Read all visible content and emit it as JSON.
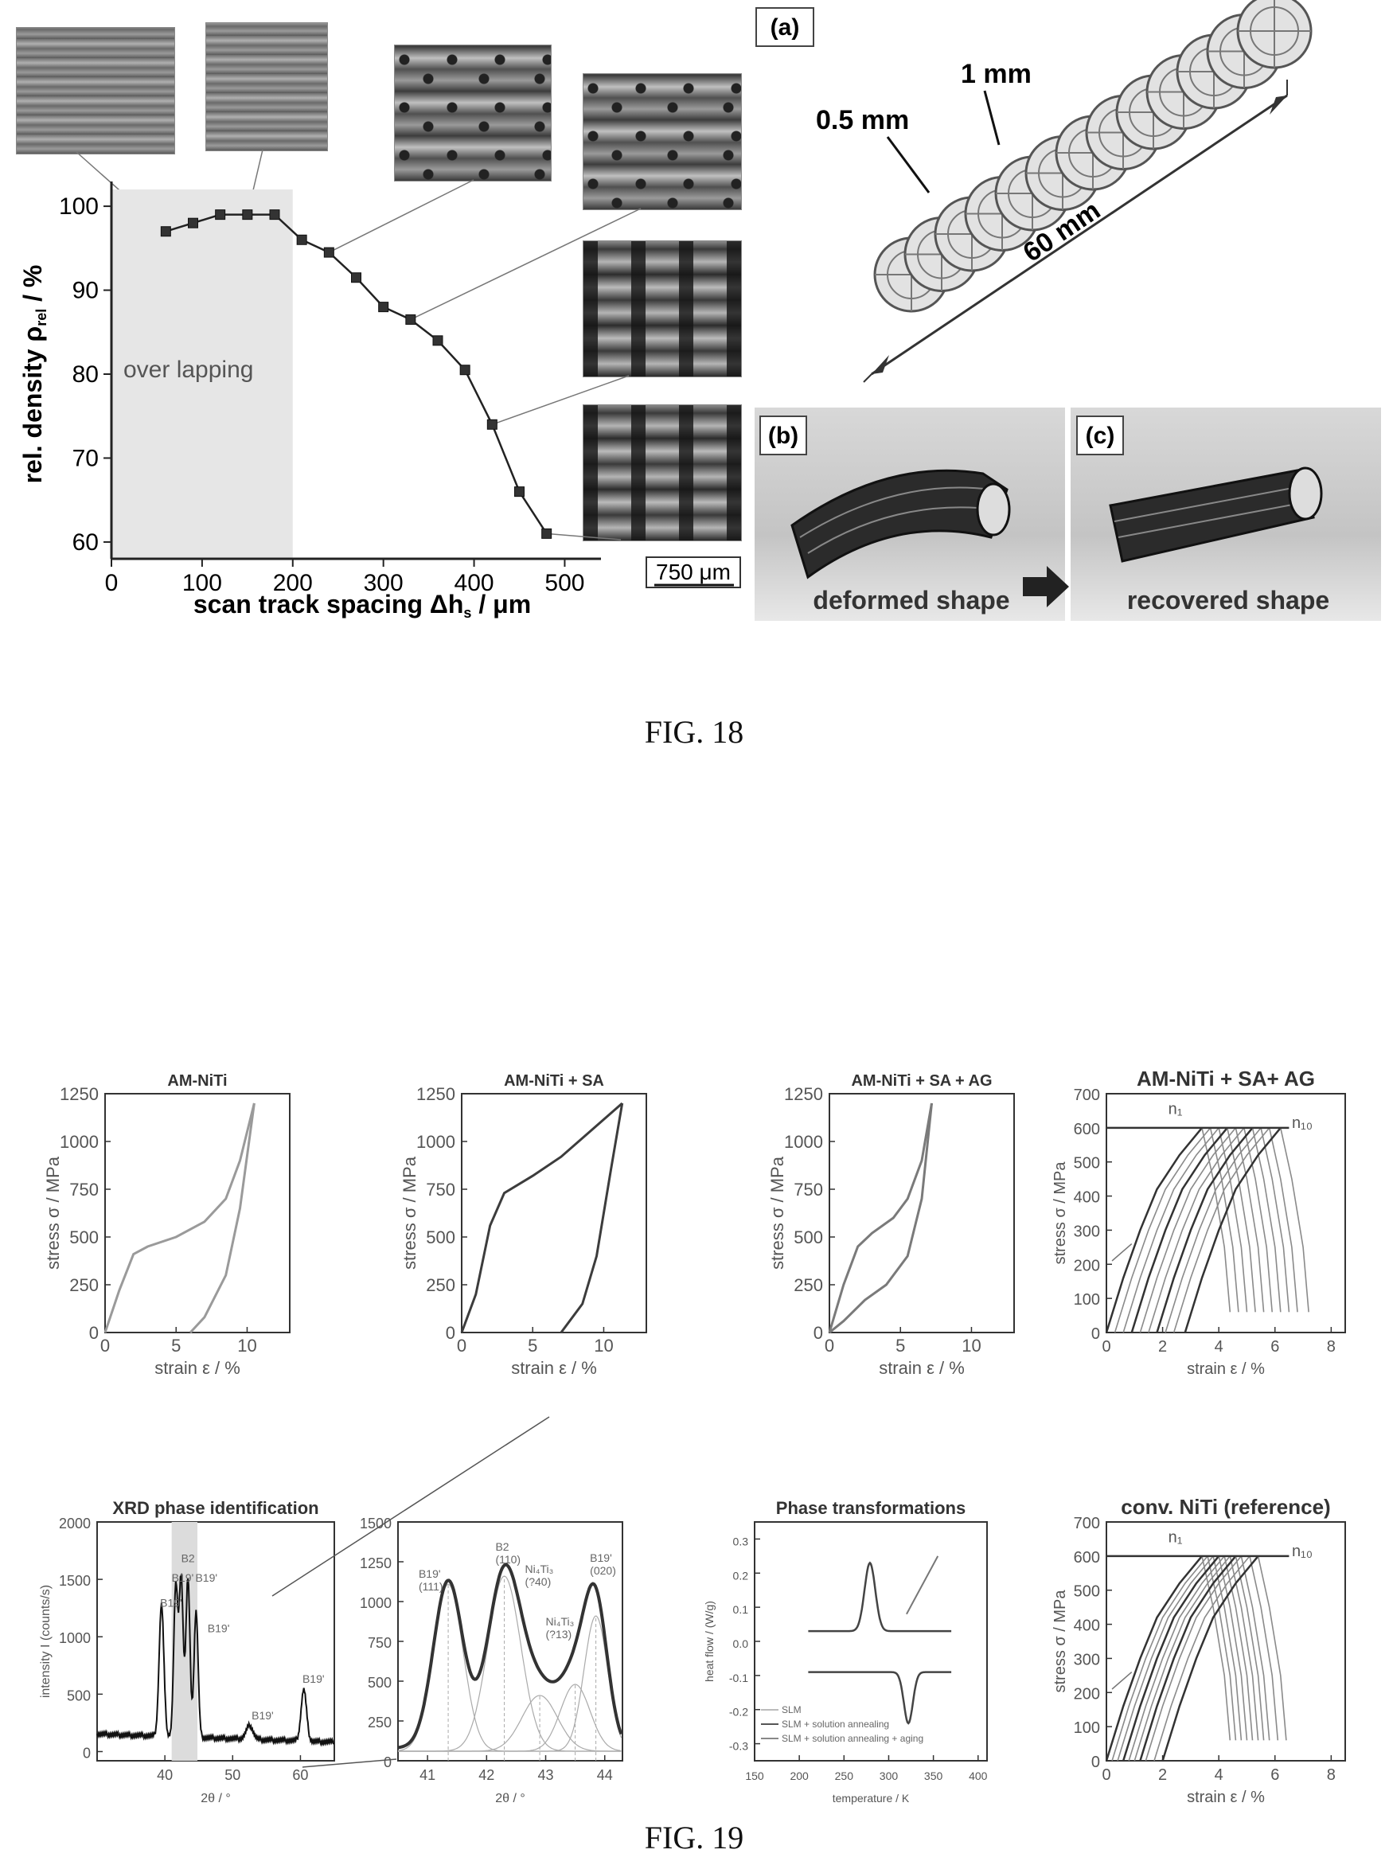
{
  "fig18": {
    "caption": "FIG. 18",
    "density_chart": {
      "type": "line",
      "xlabel": "scan track spacing Δh",
      "xlabel_sub": "s",
      "xlabel_unit": " / μm",
      "ylabel": "rel. density ρ",
      "ylabel_sub": "rel",
      "ylabel_unit": " / %",
      "region_label": "over lapping",
      "region_range": [
        0,
        200
      ],
      "xlim": [
        0,
        540
      ],
      "ylim": [
        58,
        102
      ],
      "x_ticks": [
        "0",
        "100",
        "200",
        "300",
        "400",
        "500"
      ],
      "y_ticks": [
        "60",
        "70",
        "80",
        "90",
        "100"
      ],
      "x": [
        60,
        90,
        120,
        150,
        180,
        210,
        240,
        270,
        300,
        330,
        360,
        390,
        420,
        450,
        480
      ],
      "y": [
        97,
        98,
        99,
        99,
        99,
        96,
        94.5,
        91.5,
        88,
        86.5,
        84,
        80.5,
        74,
        66,
        61
      ],
      "scale_bar": "750 μm"
    },
    "panel_a": {
      "label": "(a)",
      "dim_small": "0.5 mm",
      "dim_large": "1 mm",
      "dim_length": "60 mm"
    },
    "panel_b": {
      "label": "(b)",
      "caption": "deformed shape"
    },
    "panel_c": {
      "label": "(c)",
      "caption": "recovered shape"
    }
  },
  "fig19": {
    "caption": "FIG. 19",
    "colors": {
      "gray_curve": "#9a9a9a",
      "dark_curve": "#3c3c3c",
      "black": "#111111"
    },
    "ss1": {
      "title": "AM-NiTi",
      "xlabel": "strain ε / %",
      "ylabel": "stress σ / MPa",
      "xlim": [
        0,
        13
      ],
      "ylim": [
        0,
        1250
      ],
      "x_ticks": [
        "0",
        "5",
        "10"
      ],
      "y_ticks": [
        "0",
        "250",
        "500",
        "750",
        "1000",
        "1250"
      ]
    },
    "ss2": {
      "title": "AM-NiTi + SA",
      "xlabel": "strain ε / %",
      "ylabel": "stress σ / MPa",
      "xlim": [
        0,
        13
      ],
      "ylim": [
        0,
        1250
      ],
      "x_ticks": [
        "0",
        "5",
        "10"
      ],
      "y_ticks": [
        "0",
        "250",
        "500",
        "750",
        "1000",
        "1250"
      ]
    },
    "ss3": {
      "title": "AM-NiTi + SA + AG",
      "xlabel": "strain ε / %",
      "ylabel": "stress σ / MPa",
      "xlim": [
        0,
        13
      ],
      "ylim": [
        0,
        1250
      ],
      "x_ticks": [
        "0",
        "5",
        "10"
      ],
      "y_ticks": [
        "0",
        "250",
        "500",
        "750",
        "1000",
        "1250"
      ]
    },
    "cyc1": {
      "title": "AM-NiTi + SA+ AG",
      "xlabel": "strain ε / %",
      "ylabel": "stress σ / MPa",
      "xlim": [
        0,
        8.5
      ],
      "ylim": [
        0,
        700
      ],
      "x_ticks": [
        "0",
        "2",
        "4",
        "6",
        "8"
      ],
      "y_ticks": [
        "0",
        "100",
        "200",
        "300",
        "400",
        "500",
        "600",
        "700"
      ],
      "label_n1": "n₁",
      "label_n10": "n₁₀"
    },
    "cyc2": {
      "title": "conv. NiTi (reference)",
      "xlabel": "strain ε / %",
      "ylabel": "stress σ / MPa",
      "xlim": [
        0,
        8.5
      ],
      "ylim": [
        0,
        700
      ],
      "x_ticks": [
        "0",
        "2",
        "4",
        "6",
        "8"
      ],
      "y_ticks": [
        "0",
        "100",
        "200",
        "300",
        "400",
        "500",
        "600",
        "700"
      ],
      "label_n1": "n₁",
      "label_n10": "n₁₀"
    },
    "xrd1": {
      "title": "XRD phase identification",
      "xlabel": "2θ / °",
      "ylabel": "intensity I (counts/s)",
      "xlim": [
        30,
        65
      ],
      "ylim": [
        -80,
        2000
      ],
      "x_ticks": [
        "40",
        "50",
        "60"
      ],
      "y_ticks": [
        "0",
        "500",
        "1000",
        "1500",
        "2000"
      ],
      "peak_labels": [
        "B19'",
        "B19'",
        "B2",
        "B19'",
        "B19'",
        "B19'",
        "B19'"
      ]
    },
    "xrd2": {
      "xlabel": "2θ / °",
      "xlim": [
        40.5,
        44.3
      ],
      "ylim": [
        0,
        1500
      ],
      "x_ticks": [
        "41",
        "42",
        "43",
        "44"
      ],
      "y_ticks": [
        "0",
        "250",
        "500",
        "750",
        "1000",
        "1250",
        "1500"
      ],
      "peak_labels": [
        "B19' (111)",
        "B2 (110)",
        "Ni₄Ti₃ (?40)",
        "Ni₄Ti₃ (?13)",
        "B19' (020)"
      ]
    },
    "dsc": {
      "title": "Phase transformations",
      "xlabel": "temperature / K",
      "ylabel": "heat flow / (W/g)",
      "xlim": [
        150,
        410
      ],
      "ylim": [
        -0.35,
        0.35
      ],
      "x_ticks": [
        "150",
        "200",
        "250",
        "300",
        "350",
        "400"
      ],
      "y_ticks": [
        "-0.3",
        "-0.2",
        "-0.1",
        "0.0",
        "0.1",
        "0.2",
        "0.3"
      ],
      "legend": [
        "SLM",
        "SLM + solution annealing",
        "SLM + solution annealing + aging"
      ]
    }
  }
}
